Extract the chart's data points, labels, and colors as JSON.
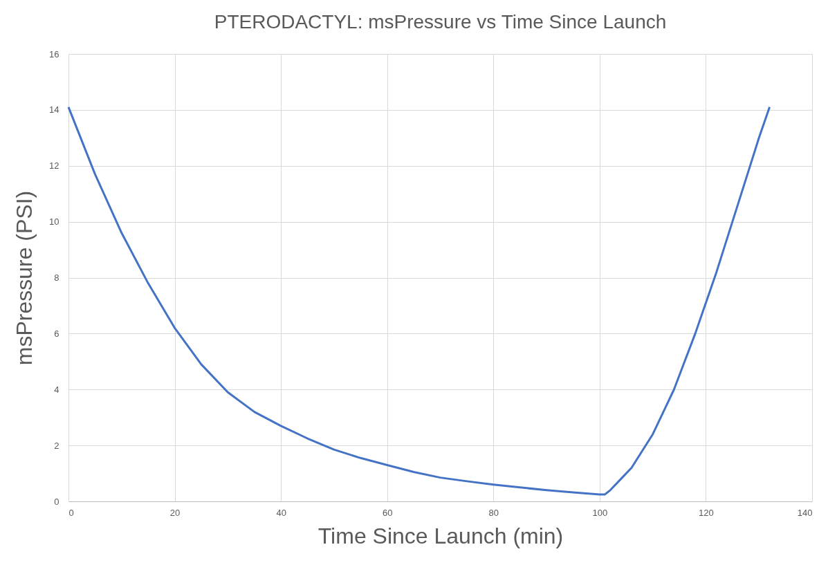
{
  "chart_data": {
    "type": "line",
    "title": "PTERODACTYL: msPressure vs Time Since Launch",
    "xlabel": "Time Since Launch (min)",
    "ylabel": "msPressure (PSI)",
    "x": [
      0,
      5,
      10,
      15,
      20,
      25,
      30,
      35,
      40,
      45,
      50,
      55,
      60,
      65,
      70,
      75,
      80,
      85,
      90,
      95,
      100,
      101,
      102,
      104,
      106,
      108,
      110,
      112,
      114,
      116,
      118,
      120,
      122,
      124,
      126,
      128,
      130,
      132
    ],
    "series": [
      {
        "color": "#4472c4",
        "values": [
          14.1,
          11.7,
          9.6,
          7.8,
          6.2,
          4.9,
          3.9,
          3.2,
          2.7,
          2.25,
          1.85,
          1.55,
          1.3,
          1.05,
          0.85,
          0.72,
          0.6,
          0.5,
          0.4,
          0.32,
          0.25,
          0.25,
          0.4,
          0.8,
          1.2,
          1.8,
          2.4,
          3.2,
          4.0,
          5.0,
          6.0,
          7.1,
          8.2,
          9.4,
          10.6,
          11.8,
          13.0,
          14.1
        ]
      }
    ],
    "xlim": [
      0,
      140
    ],
    "xticks": [
      0,
      20,
      40,
      60,
      80,
      100,
      120,
      140
    ],
    "ylim": [
      0,
      16
    ],
    "yticks": [
      0,
      2,
      4,
      6,
      8,
      10,
      12,
      14,
      16
    ],
    "grid": true,
    "legend": false,
    "marker": "none",
    "line_style": "solid"
  }
}
